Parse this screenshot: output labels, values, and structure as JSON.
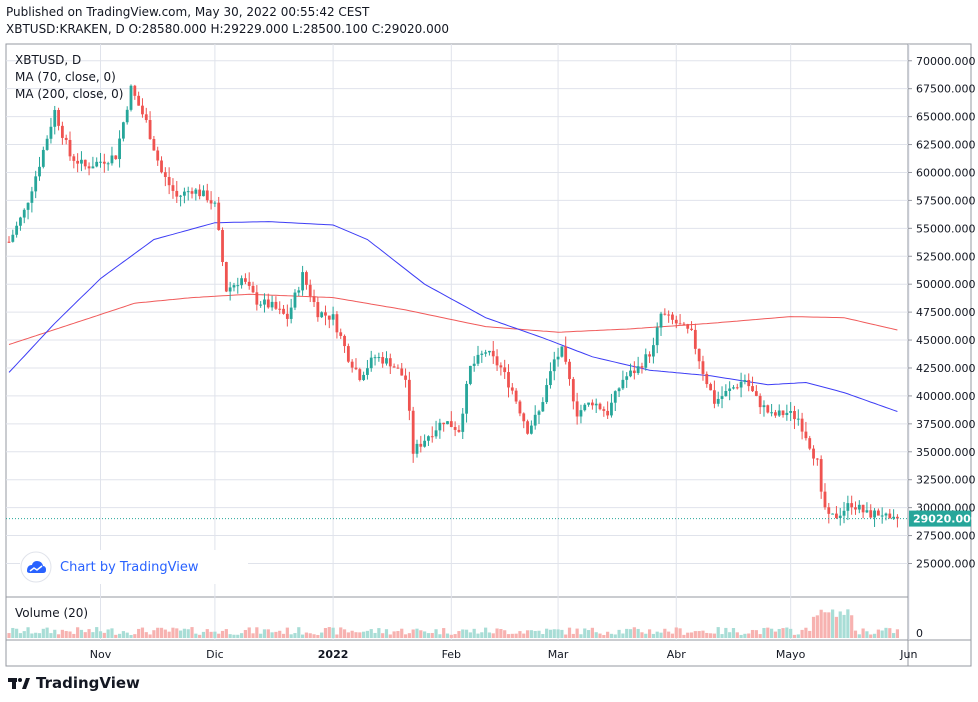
{
  "header": {
    "published": "Published on TradingView.com, May 30, 2022 00:55:42 CEST",
    "ohlc": "XBTUSD:KRAKEN, D  O:28580.000 H:29229.000 L:28500.100 C:29020.000"
  },
  "legend": {
    "symbol": "XBTUSD, D",
    "ma70": "MA (70, close, 0)",
    "ma200": "MA (200, close, 0)"
  },
  "volume_label": "Volume (20)",
  "badge_text": "Chart by TradingView",
  "brand_text": "TradingView",
  "last_price_label": "29020.000",
  "colors": {
    "up": "#26a69a",
    "down": "#ef5350",
    "ma70": "#3d3df5",
    "ma200": "#f05a5a",
    "grid": "#e0e3eb"
  },
  "chart_data": {
    "type": "candlestick",
    "symbol": "XBTUSD:KRAKEN",
    "interval": "D",
    "y_ticks": [
      25000,
      27500,
      30000,
      32500,
      35000,
      37500,
      40000,
      42500,
      45000,
      47500,
      50000,
      52500,
      55000,
      57500,
      60000,
      62500,
      65000,
      67500,
      70000
    ],
    "y_tick_labels": [
      "25000.000",
      "27500.000",
      "30000.000",
      "32500.000",
      "35000.000",
      "37500.000",
      "40000.000",
      "42500.000",
      "45000.000",
      "47500.000",
      "50000.000",
      "52500.000",
      "55000.000",
      "57500.000",
      "60000.000",
      "62500.000",
      "65000.000",
      "67500.000",
      "70000.000"
    ],
    "ylim": [
      22000,
      71500
    ],
    "x_ticks": [
      {
        "label": "Nov",
        "date": "2021-11-01"
      },
      {
        "label": "Dic",
        "date": "2021-12-01"
      },
      {
        "label": "2022",
        "date": "2022-01-01"
      },
      {
        "label": "Feb",
        "date": "2022-02-01"
      },
      {
        "label": "Mar",
        "date": "2022-03-01"
      },
      {
        "label": "Abr",
        "date": "2022-04-01"
      },
      {
        "label": "Mayo",
        "date": "2022-05-01"
      },
      {
        "label": "Jun",
        "date": "2022-06-01"
      }
    ],
    "start_date": "2021-10-08",
    "end_date": "2022-05-29",
    "close_anchors": [
      [
        "2021-10-08",
        53800
      ],
      [
        "2021-10-12",
        56500
      ],
      [
        "2021-10-16",
        60800
      ],
      [
        "2021-10-20",
        65500
      ],
      [
        "2021-10-24",
        61500
      ],
      [
        "2021-10-28",
        60500
      ],
      [
        "2021-11-01",
        61000
      ],
      [
        "2021-11-05",
        61500
      ],
      [
        "2021-11-09",
        67500
      ],
      [
        "2021-11-13",
        64500
      ],
      [
        "2021-11-17",
        60000
      ],
      [
        "2021-11-21",
        57800
      ],
      [
        "2021-11-25",
        58500
      ],
      [
        "2021-11-29",
        57800
      ],
      [
        "2021-12-01",
        57000
      ],
      [
        "2021-12-04",
        49500
      ],
      [
        "2021-12-08",
        50500
      ],
      [
        "2021-12-12",
        48500
      ],
      [
        "2021-12-16",
        48000
      ],
      [
        "2021-12-20",
        47000
      ],
      [
        "2021-12-24",
        50800
      ],
      [
        "2021-12-28",
        47500
      ],
      [
        "2022-01-01",
        47000
      ],
      [
        "2022-01-05",
        43500
      ],
      [
        "2022-01-08",
        41800
      ],
      [
        "2022-01-12",
        43500
      ],
      [
        "2022-01-16",
        43000
      ],
      [
        "2022-01-20",
        41500
      ],
      [
        "2022-01-22",
        35000
      ],
      [
        "2022-01-26",
        36500
      ],
      [
        "2022-01-30",
        37800
      ],
      [
        "2022-02-03",
        37000
      ],
      [
        "2022-02-06",
        42500
      ],
      [
        "2022-02-10",
        44000
      ],
      [
        "2022-02-14",
        42500
      ],
      [
        "2022-02-17",
        40500
      ],
      [
        "2022-02-21",
        37000
      ],
      [
        "2022-02-24",
        38500
      ],
      [
        "2022-02-28",
        43200
      ],
      [
        "2022-03-02",
        44000
      ],
      [
        "2022-03-06",
        38500
      ],
      [
        "2022-03-10",
        39500
      ],
      [
        "2022-03-14",
        38500
      ],
      [
        "2022-03-18",
        41500
      ],
      [
        "2022-03-22",
        42500
      ],
      [
        "2022-03-26",
        44300
      ],
      [
        "2022-03-28",
        47300
      ],
      [
        "2022-04-01",
        46500
      ],
      [
        "2022-04-05",
        45500
      ],
      [
        "2022-04-08",
        42200
      ],
      [
        "2022-04-11",
        39500
      ],
      [
        "2022-04-15",
        40500
      ],
      [
        "2022-04-19",
        41500
      ],
      [
        "2022-04-22",
        39700
      ],
      [
        "2022-04-26",
        38200
      ],
      [
        "2022-04-30",
        38500
      ],
      [
        "2022-05-03",
        38000
      ],
      [
        "2022-05-05",
        36500
      ],
      [
        "2022-05-08",
        34000
      ],
      [
        "2022-05-09",
        31000
      ],
      [
        "2022-05-11",
        29000
      ],
      [
        "2022-05-13",
        29300
      ],
      [
        "2022-05-17",
        30400
      ],
      [
        "2022-05-21",
        29400
      ],
      [
        "2022-05-25",
        29500
      ],
      [
        "2022-05-27",
        28600
      ],
      [
        "2022-05-29",
        29020
      ]
    ],
    "ma70_anchors": [
      [
        "2021-10-08",
        42100
      ],
      [
        "2021-10-20",
        46500
      ],
      [
        "2021-11-01",
        50500
      ],
      [
        "2021-11-15",
        54000
      ],
      [
        "2021-12-01",
        55500
      ],
      [
        "2021-12-15",
        55600
      ],
      [
        "2022-01-01",
        55300
      ],
      [
        "2022-01-10",
        54000
      ],
      [
        "2022-01-25",
        50000
      ],
      [
        "2022-02-10",
        47000
      ],
      [
        "2022-02-25",
        45200
      ],
      [
        "2022-03-10",
        43500
      ],
      [
        "2022-03-25",
        42300
      ],
      [
        "2022-04-10",
        41800
      ],
      [
        "2022-04-25",
        41000
      ],
      [
        "2022-05-05",
        41200
      ],
      [
        "2022-05-15",
        40300
      ],
      [
        "2022-05-29",
        38600
      ]
    ],
    "ma200_anchors": [
      [
        "2021-10-08",
        44600
      ],
      [
        "2021-10-25",
        46500
      ],
      [
        "2021-11-10",
        48300
      ],
      [
        "2021-11-25",
        48800
      ],
      [
        "2021-12-10",
        49100
      ],
      [
        "2022-01-01",
        48800
      ],
      [
        "2022-01-20",
        47700
      ],
      [
        "2022-02-10",
        46200
      ],
      [
        "2022-03-01",
        45700
      ],
      [
        "2022-03-20",
        46000
      ],
      [
        "2022-04-10",
        46500
      ],
      [
        "2022-05-01",
        47100
      ],
      [
        "2022-05-15",
        47000
      ],
      [
        "2022-05-29",
        45900
      ]
    ],
    "last_price": 29020,
    "volume_axis_label": "0",
    "grid": true
  }
}
